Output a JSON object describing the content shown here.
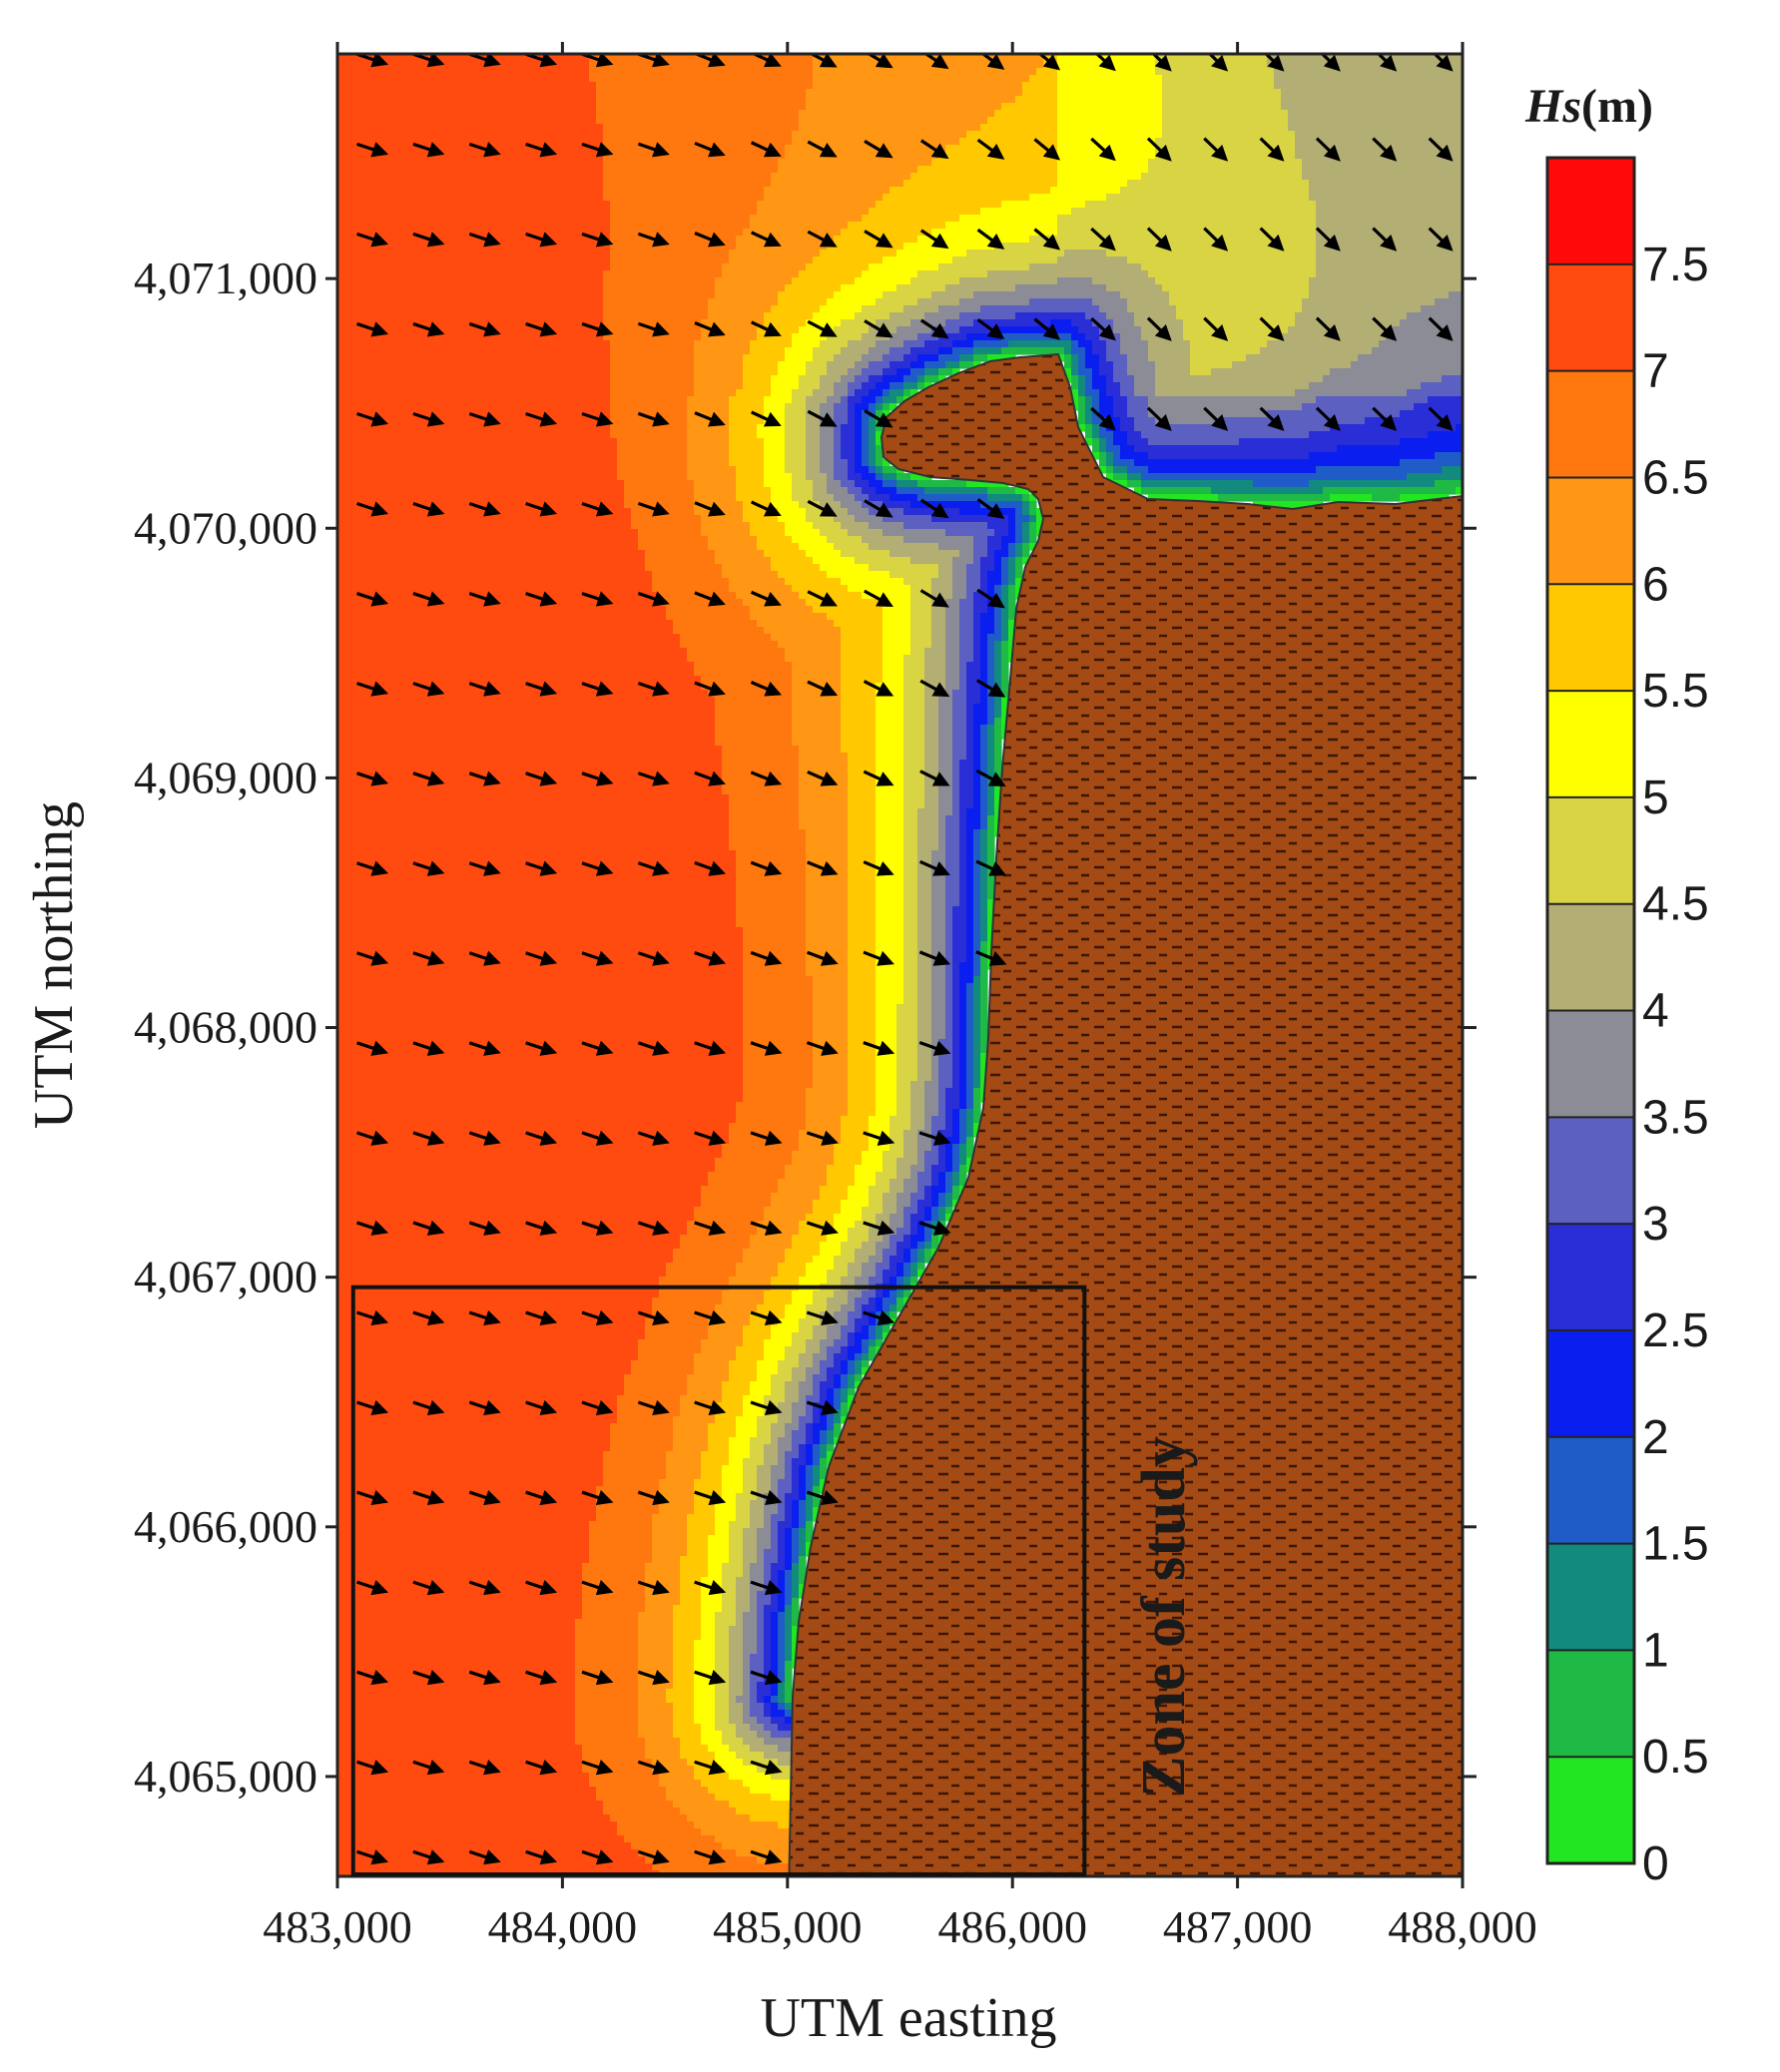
{
  "chart_data": {
    "type": "heatmap",
    "title": "",
    "xlabel": "UTM easting",
    "ylabel": "UTM northing",
    "xlim": [
      483000,
      488000
    ],
    "ylim": [
      4064600,
      4071900
    ],
    "x_ticks": [
      483000,
      484000,
      485000,
      486000,
      487000,
      488000
    ],
    "x_tick_labels": [
      "483,000",
      "484,000",
      "485,000",
      "486,000",
      "487,000",
      "488,000"
    ],
    "y_ticks": [
      4065000,
      4066000,
      4067000,
      4068000,
      4069000,
      4070000,
      4071000
    ],
    "y_tick_labels": [
      "4,065,000",
      "4,066,000",
      "4,067,000",
      "4,068,000",
      "4,069,000",
      "4,070,000",
      "4,071,000"
    ],
    "colorbar": {
      "title_italic": "Hs",
      "title_unit": "(m)",
      "tick_labels": [
        "0",
        "0.5",
        "1",
        "1.5",
        "2",
        "2.5",
        "3",
        "3.5",
        "4",
        "4.5",
        "5",
        "5.5",
        "6",
        "6.5",
        "7",
        "7.5"
      ],
      "levels": [
        0,
        0.5,
        1,
        1.5,
        2,
        2.5,
        3,
        3.5,
        4,
        4.5,
        5,
        5.5,
        6,
        6.5,
        7,
        7.5,
        8
      ],
      "colors": [
        "#22e622",
        "#1fba45",
        "#128a7e",
        "#1f5cc8",
        "#0b1ef0",
        "#2a2ed6",
        "#5c60c0",
        "#8c8c96",
        "#b2ae74",
        "#d8d444",
        "#ffff00",
        "#ffc800",
        "#ff9614",
        "#ff780f",
        "#ff4b0f",
        "#ff0a0a"
      ]
    },
    "land_color": "#a44a14",
    "annotation": {
      "text": "Zone of study",
      "box_x": [
        483070,
        486320
      ],
      "box_y": [
        4064600,
        4066960
      ]
    },
    "vectors": {
      "description_from_figure": "wave direction arrows on a regular grid",
      "x_start": 483150,
      "x_step": 250,
      "x_count": 20,
      "y_start": 4064680,
      "y_step": 360,
      "y_count": 21
    }
  }
}
